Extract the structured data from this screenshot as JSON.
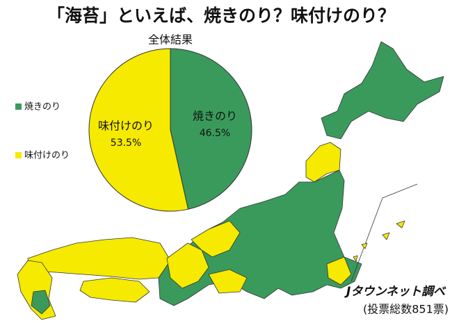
{
  "chart_data": {
    "type": "pie",
    "title": "「海苔」といえば、焼きのり？味付けのり？",
    "subtitle": "全体結果",
    "categories": [
      "焼きのり",
      "味付けのり"
    ],
    "values": [
      46.5,
      53.5
    ],
    "value_labels": [
      "46.5%",
      "53.5%"
    ],
    "colors": [
      "#3a9a5c",
      "#f5ea00"
    ],
    "source": "Jタウンネット調べ",
    "note": "(投票総数851票)"
  }
}
